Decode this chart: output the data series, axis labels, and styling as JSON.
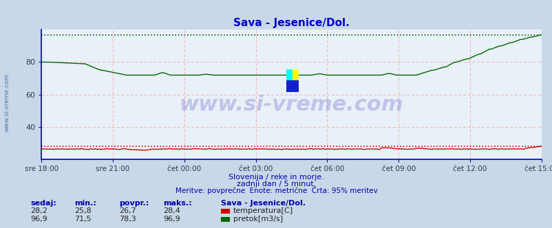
{
  "title": "Sava - Jesenice/Dol.",
  "title_color": "#0000cc",
  "bg_color": "#c8d8e8",
  "plot_bg_color": "#e8f0f8",
  "x_labels": [
    "sre 18:00",
    "sre 21:00",
    "čet 00:00",
    "čet 03:00",
    "čet 06:00",
    "čet 09:00",
    "čet 12:00",
    "čet 15:00"
  ],
  "grid_color": "#ffaaaa",
  "grid_color_v": "#ffaaaa",
  "temp_color": "#cc0000",
  "flow_color": "#006600",
  "axis_color": "#0000bb",
  "watermark_text": "www.si-vreme.com",
  "watermark_color": "#0000aa",
  "watermark_alpha": 0.18,
  "sub_text1": "Slovenija / reke in morje.",
  "sub_text2": "zadnji dan / 5 minut.",
  "sub_text3": "Meritve: povprečne  Enote: metrične  Črta: 95% meritev",
  "sub_text_color": "#0000aa",
  "legend_title": "Sava - Jesenice/Dol.",
  "legend_title_color": "#0000aa",
  "legend_items": [
    {
      "label": "temperatura[C]",
      "color": "#cc0000"
    },
    {
      "label": "pretok[m3/s]",
      "color": "#006600"
    }
  ],
  "table_headers": [
    "sedaj:",
    "min.:",
    "povpr.:",
    "maks.:"
  ],
  "table_row1": [
    "28,2",
    "25,8",
    "26,7",
    "28,4"
  ],
  "table_row2": [
    "96,9",
    "71,5",
    "78,3",
    "96,9"
  ],
  "n_points": 288,
  "y_min": 20,
  "y_max": 100,
  "flow_95pct": 96.5,
  "temp_95pct": 28.2,
  "left_margin_text": "www.si-vreme.com",
  "left_text_color": "#5577aa"
}
